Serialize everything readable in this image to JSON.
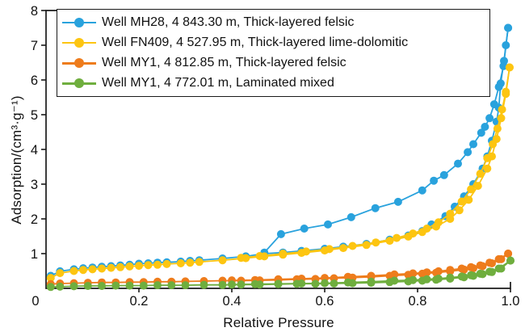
{
  "figure": {
    "background": "#ffffff",
    "text_color": "#111111",
    "axis_color": "#1a1a1a"
  },
  "chart_data": {
    "type": "line",
    "title": "",
    "xlabel": "Relative Pressure",
    "ylabel": "Adsorption/(cm³·g⁻¹)",
    "xlim": [
      0,
      1.0
    ],
    "ylim": [
      0,
      8
    ],
    "grid": false,
    "legend_position": "upper-left-inside",
    "marker": "circle",
    "origin_label": "0",
    "x_ticks": [
      0.2,
      0.4,
      0.6,
      0.8,
      1.0
    ],
    "x_tick_labels": [
      "0.2",
      "0.4",
      "0.6",
      "0.8",
      "1.0"
    ],
    "y_ticks": [
      1,
      2,
      3,
      4,
      5,
      6,
      7,
      8
    ],
    "y_tick_labels": [
      "1",
      "2",
      "3",
      "4",
      "5",
      "6",
      "7",
      "8"
    ],
    "series": [
      {
        "name": "Well MH28, 4 843.30 m, Thick-layered felsic",
        "color": "#29A2DD",
        "adsorption": [
          [
            0.01,
            0.36
          ],
          [
            0.03,
            0.49
          ],
          [
            0.06,
            0.55
          ],
          [
            0.08,
            0.58
          ],
          [
            0.1,
            0.6
          ],
          [
            0.12,
            0.62
          ],
          [
            0.14,
            0.64
          ],
          [
            0.16,
            0.66
          ],
          [
            0.18,
            0.68
          ],
          [
            0.2,
            0.71
          ],
          [
            0.22,
            0.72
          ],
          [
            0.24,
            0.74
          ],
          [
            0.26,
            0.75
          ],
          [
            0.29,
            0.77
          ],
          [
            0.31,
            0.79
          ],
          [
            0.33,
            0.81
          ],
          [
            0.38,
            0.86
          ],
          [
            0.43,
            0.92
          ],
          [
            0.47,
            1.0
          ],
          [
            0.51,
            1.03
          ],
          [
            0.55,
            1.08
          ],
          [
            0.6,
            1.14
          ],
          [
            0.64,
            1.2
          ],
          [
            0.69,
            1.28
          ],
          [
            0.74,
            1.4
          ],
          [
            0.78,
            1.52
          ],
          [
            0.81,
            1.65
          ],
          [
            0.83,
            1.84
          ],
          [
            0.86,
            2.08
          ],
          [
            0.88,
            2.35
          ],
          [
            0.9,
            2.65
          ],
          [
            0.92,
            3.0
          ],
          [
            0.94,
            3.45
          ],
          [
            0.95,
            3.8
          ],
          [
            0.96,
            4.25
          ],
          [
            0.97,
            4.8
          ],
          [
            0.975,
            5.2
          ],
          [
            0.979,
            5.9
          ],
          [
            0.986,
            6.55
          ],
          [
            0.99,
            7.0
          ],
          [
            0.995,
            7.5
          ]
        ],
        "desorption": [
          [
            0.995,
            7.5
          ],
          [
            0.985,
            6.4
          ],
          [
            0.975,
            5.8
          ],
          [
            0.965,
            5.3
          ],
          [
            0.955,
            4.9
          ],
          [
            0.945,
            4.65
          ],
          [
            0.937,
            4.48
          ],
          [
            0.92,
            4.15
          ],
          [
            0.908,
            3.92
          ],
          [
            0.887,
            3.59
          ],
          [
            0.857,
            3.26
          ],
          [
            0.835,
            3.1
          ],
          [
            0.81,
            2.82
          ],
          [
            0.758,
            2.49
          ],
          [
            0.709,
            2.31
          ],
          [
            0.657,
            2.05
          ],
          [
            0.607,
            1.84
          ],
          [
            0.556,
            1.72
          ],
          [
            0.506,
            1.56
          ],
          [
            0.47,
            1.03
          ]
        ]
      },
      {
        "name": "Well FN409, 4 527.95 m, Thick-layered lime-dolomitic",
        "color": "#FDC511",
        "adsorption": [
          [
            0.01,
            0.3
          ],
          [
            0.03,
            0.44
          ],
          [
            0.06,
            0.5
          ],
          [
            0.08,
            0.53
          ],
          [
            0.1,
            0.55
          ],
          [
            0.12,
            0.57
          ],
          [
            0.14,
            0.59
          ],
          [
            0.16,
            0.61
          ],
          [
            0.18,
            0.63
          ],
          [
            0.2,
            0.65
          ],
          [
            0.22,
            0.67
          ],
          [
            0.24,
            0.68
          ],
          [
            0.26,
            0.7
          ],
          [
            0.29,
            0.72
          ],
          [
            0.31,
            0.74
          ],
          [
            0.33,
            0.76
          ],
          [
            0.38,
            0.81
          ],
          [
            0.43,
            0.87
          ],
          [
            0.47,
            0.92
          ],
          [
            0.51,
            0.97
          ],
          [
            0.55,
            1.02
          ],
          [
            0.6,
            1.09
          ],
          [
            0.64,
            1.16
          ],
          [
            0.69,
            1.25
          ],
          [
            0.74,
            1.37
          ],
          [
            0.78,
            1.49
          ],
          [
            0.81,
            1.62
          ],
          [
            0.84,
            1.78
          ],
          [
            0.87,
            2.0
          ],
          [
            0.89,
            2.25
          ],
          [
            0.91,
            2.55
          ],
          [
            0.93,
            2.95
          ],
          [
            0.95,
            3.45
          ],
          [
            0.96,
            3.8
          ],
          [
            0.97,
            4.3
          ],
          [
            0.98,
            4.9
          ],
          [
            0.99,
            5.6
          ],
          [
            0.998,
            6.36
          ]
        ],
        "desorption": [
          [
            0.998,
            6.36
          ],
          [
            0.99,
            5.66
          ],
          [
            0.982,
            5.15
          ],
          [
            0.972,
            4.6
          ],
          [
            0.962,
            4.15
          ],
          [
            0.95,
            3.75
          ],
          [
            0.935,
            3.3
          ],
          [
            0.915,
            2.85
          ],
          [
            0.895,
            2.5
          ],
          [
            0.87,
            2.15
          ],
          [
            0.845,
            1.9
          ],
          [
            0.82,
            1.72
          ],
          [
            0.79,
            1.58
          ],
          [
            0.755,
            1.45
          ],
          [
            0.71,
            1.32
          ],
          [
            0.66,
            1.22
          ],
          [
            0.61,
            1.13
          ],
          [
            0.56,
            1.06
          ],
          [
            0.51,
            1.0
          ],
          [
            0.46,
            0.93
          ],
          [
            0.42,
            0.88
          ]
        ]
      },
      {
        "name": "Well MY1, 4 812.85 m, Thick-layered felsic",
        "color": "#EE7C1C",
        "adsorption": [
          [
            0.01,
            0.12
          ],
          [
            0.03,
            0.14
          ],
          [
            0.06,
            0.15
          ],
          [
            0.09,
            0.16
          ],
          [
            0.12,
            0.17
          ],
          [
            0.15,
            0.17
          ],
          [
            0.18,
            0.18
          ],
          [
            0.21,
            0.18
          ],
          [
            0.24,
            0.19
          ],
          [
            0.27,
            0.19
          ],
          [
            0.3,
            0.2
          ],
          [
            0.34,
            0.21
          ],
          [
            0.38,
            0.22
          ],
          [
            0.42,
            0.22
          ],
          [
            0.46,
            0.23
          ],
          [
            0.5,
            0.24
          ],
          [
            0.54,
            0.26
          ],
          [
            0.58,
            0.27
          ],
          [
            0.62,
            0.29
          ],
          [
            0.66,
            0.31
          ],
          [
            0.7,
            0.33
          ],
          [
            0.74,
            0.36
          ],
          [
            0.78,
            0.39
          ],
          [
            0.81,
            0.42
          ],
          [
            0.84,
            0.45
          ],
          [
            0.87,
            0.49
          ],
          [
            0.9,
            0.54
          ],
          [
            0.92,
            0.58
          ],
          [
            0.94,
            0.64
          ],
          [
            0.96,
            0.72
          ],
          [
            0.98,
            0.84
          ],
          [
            0.995,
            1.0
          ]
        ],
        "desorption": [
          [
            0.995,
            1.0
          ],
          [
            0.975,
            0.84
          ],
          [
            0.955,
            0.74
          ],
          [
            0.935,
            0.66
          ],
          [
            0.915,
            0.61
          ],
          [
            0.895,
            0.57
          ],
          [
            0.87,
            0.53
          ],
          [
            0.845,
            0.49
          ],
          [
            0.82,
            0.46
          ],
          [
            0.79,
            0.43
          ],
          [
            0.75,
            0.4
          ],
          [
            0.7,
            0.36
          ],
          [
            0.65,
            0.33
          ],
          [
            0.6,
            0.3
          ],
          [
            0.55,
            0.28
          ],
          [
            0.5,
            0.26
          ],
          [
            0.45,
            0.24
          ],
          [
            0.4,
            0.23
          ]
        ]
      },
      {
        "name": "Well MY1, 4 772.01 m, Laminated mixed",
        "color": "#6FAE3E",
        "adsorption": [
          [
            0.01,
            0.04
          ],
          [
            0.03,
            0.05
          ],
          [
            0.06,
            0.06
          ],
          [
            0.09,
            0.07
          ],
          [
            0.12,
            0.07
          ],
          [
            0.15,
            0.08
          ],
          [
            0.18,
            0.08
          ],
          [
            0.21,
            0.08
          ],
          [
            0.24,
            0.09
          ],
          [
            0.27,
            0.09
          ],
          [
            0.3,
            0.09
          ],
          [
            0.34,
            0.1
          ],
          [
            0.38,
            0.1
          ],
          [
            0.42,
            0.11
          ],
          [
            0.46,
            0.11
          ],
          [
            0.5,
            0.12
          ],
          [
            0.54,
            0.13
          ],
          [
            0.58,
            0.13
          ],
          [
            0.62,
            0.14
          ],
          [
            0.66,
            0.15
          ],
          [
            0.7,
            0.16
          ],
          [
            0.74,
            0.18
          ],
          [
            0.78,
            0.2
          ],
          [
            0.81,
            0.22
          ],
          [
            0.84,
            0.25
          ],
          [
            0.87,
            0.28
          ],
          [
            0.9,
            0.32
          ],
          [
            0.92,
            0.36
          ],
          [
            0.94,
            0.41
          ],
          [
            0.96,
            0.47
          ],
          [
            0.98,
            0.57
          ],
          [
            1.0,
            0.8
          ]
        ],
        "desorption": [
          [
            1.0,
            0.8
          ],
          [
            0.975,
            0.57
          ],
          [
            0.955,
            0.48
          ],
          [
            0.935,
            0.42
          ],
          [
            0.915,
            0.38
          ],
          [
            0.895,
            0.34
          ],
          [
            0.87,
            0.31
          ],
          [
            0.845,
            0.28
          ],
          [
            0.82,
            0.26
          ],
          [
            0.79,
            0.24
          ],
          [
            0.75,
            0.22
          ],
          [
            0.7,
            0.19
          ],
          [
            0.65,
            0.17
          ],
          [
            0.6,
            0.15
          ],
          [
            0.55,
            0.14
          ],
          [
            0.5,
            0.13
          ],
          [
            0.45,
            0.12
          ],
          [
            0.4,
            0.11
          ]
        ]
      }
    ]
  }
}
